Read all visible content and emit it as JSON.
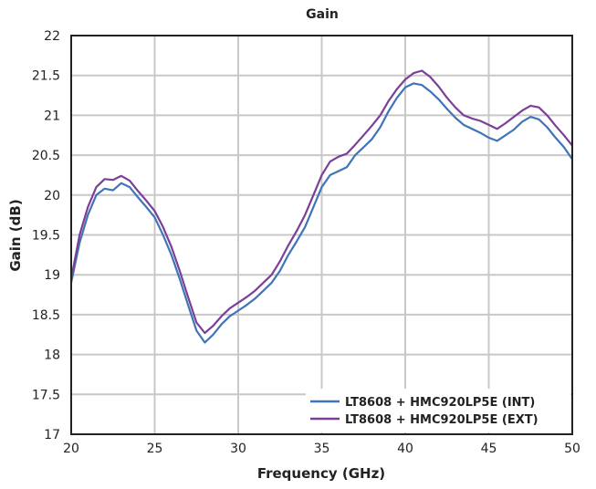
{
  "chart_data": {
    "type": "line",
    "title": "Gain",
    "xlabel": "Frequency (GHz)",
    "ylabel": "Gain (dB)",
    "xlim": [
      20,
      50
    ],
    "ylim": [
      17,
      22
    ],
    "xticks": [
      20,
      25,
      30,
      35,
      40,
      45,
      50
    ],
    "yticks": [
      17,
      17.5,
      18,
      18.5,
      19,
      19.5,
      20,
      20.5,
      21,
      21.5,
      22
    ],
    "grid": true,
    "legend_position": "bottom-right",
    "x": [
      20,
      20.5,
      21,
      21.5,
      22,
      22.5,
      23,
      23.5,
      24,
      24.5,
      25,
      25.5,
      26,
      26.5,
      27,
      27.5,
      28,
      28.5,
      29,
      29.5,
      30,
      30.5,
      31,
      31.5,
      32,
      32.5,
      33,
      33.5,
      34,
      34.5,
      35,
      35.5,
      36,
      36.5,
      37,
      37.5,
      38,
      38.5,
      39,
      39.5,
      40,
      40.5,
      41,
      41.5,
      42,
      42.5,
      43,
      43.5,
      44,
      44.5,
      45,
      45.5,
      46,
      46.5,
      47,
      47.5,
      48,
      48.5,
      49,
      49.5,
      50
    ],
    "series": [
      {
        "name": "LT8608 + HMC920LP5E (INT)",
        "color": "#3f74b8",
        "values": [
          18.9,
          19.4,
          19.75,
          20.0,
          20.08,
          20.06,
          20.15,
          20.1,
          19.97,
          19.85,
          19.72,
          19.5,
          19.25,
          18.95,
          18.62,
          18.3,
          18.15,
          18.25,
          18.38,
          18.48,
          18.55,
          18.62,
          18.7,
          18.8,
          18.9,
          19.05,
          19.25,
          19.42,
          19.6,
          19.85,
          20.1,
          20.25,
          20.3,
          20.35,
          20.5,
          20.6,
          20.7,
          20.85,
          21.05,
          21.22,
          21.35,
          21.4,
          21.38,
          21.3,
          21.2,
          21.08,
          20.97,
          20.88,
          20.83,
          20.78,
          20.72,
          20.68,
          20.75,
          20.82,
          20.92,
          20.98,
          20.95,
          20.85,
          20.72,
          20.6,
          20.45
        ]
      },
      {
        "name": "LT8608 + HMC920LP5E (EXT)",
        "color": "#7b3f98",
        "values": [
          18.95,
          19.5,
          19.85,
          20.1,
          20.2,
          20.19,
          20.24,
          20.18,
          20.05,
          19.93,
          19.8,
          19.6,
          19.35,
          19.05,
          18.72,
          18.4,
          18.27,
          18.36,
          18.48,
          18.58,
          18.65,
          18.72,
          18.8,
          18.9,
          19.0,
          19.17,
          19.37,
          19.55,
          19.75,
          20.0,
          20.25,
          20.42,
          20.48,
          20.52,
          20.63,
          20.75,
          20.87,
          21.0,
          21.18,
          21.33,
          21.45,
          21.53,
          21.56,
          21.48,
          21.36,
          21.22,
          21.1,
          21.0,
          20.96,
          20.93,
          20.88,
          20.83,
          20.9,
          20.98,
          21.06,
          21.12,
          21.1,
          21.0,
          20.87,
          20.75,
          20.62
        ]
      }
    ]
  }
}
